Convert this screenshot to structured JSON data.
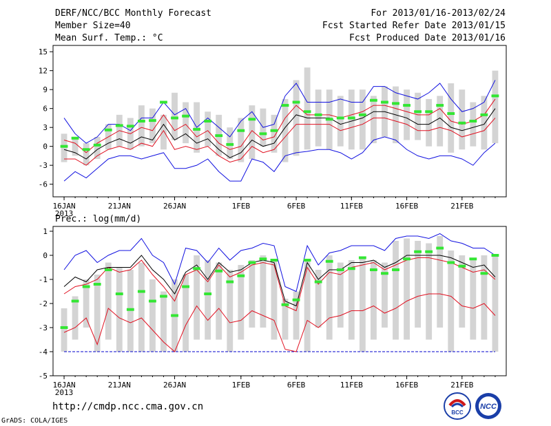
{
  "header": {
    "title": "DERF/NCC/BCC Monthly Forecast",
    "member_size": "Member Size=40",
    "variable": "Mean Surf. Temp.: °C",
    "period": "For 2013/01/16-2013/02/24",
    "start_date": "Fcst Started Refer Date 2013/01/15",
    "produced_date": "Fcst Produced Date 2013/01/16"
  },
  "footer": {
    "url": "http://cmdp.ncc.cma.gov.cn",
    "credit": "GrADS: COLA/IGES",
    "logo_bcc_text": "BCC",
    "logo_ncc_text": "NCC"
  },
  "colors": {
    "box": "#d4d4d4",
    "mean": "#33e633",
    "median": "#000000",
    "spread_inner": "#e01020",
    "spread_outer": "#1010e0",
    "floor": "#0000cc"
  },
  "chart_data": [
    {
      "type": "box-ensemble",
      "title": "Mean Surf. Temp.: °C",
      "x_days": 40,
      "ylim": [
        -8,
        16
      ],
      "yticks": [
        -6,
        -3,
        0,
        3,
        6,
        9,
        12,
        15
      ],
      "xticks": [
        {
          "day": 1,
          "label": "16JAN",
          "sub": "2013"
        },
        {
          "day": 6,
          "label": "21JAN"
        },
        {
          "day": 11,
          "label": "26JAN"
        },
        {
          "day": 17,
          "label": "1FEB"
        },
        {
          "day": 22,
          "label": "6FEB"
        },
        {
          "day": 27,
          "label": "11FEB"
        },
        {
          "day": 32,
          "label": "16FEB"
        },
        {
          "day": 37,
          "label": "21FEB"
        }
      ],
      "box_low": [
        -2.5,
        -1.5,
        -3,
        -2,
        -0.5,
        0,
        -0.5,
        0,
        0.5,
        -0.5,
        1,
        0.5,
        -1,
        0,
        -1.5,
        -2,
        -2.5,
        -2,
        0,
        -1,
        -2.5,
        -1.5,
        -0.5,
        0,
        -0.5,
        0,
        -0.5,
        -0.5,
        0.5,
        1.5,
        0.5,
        1,
        1,
        0,
        0,
        -1,
        -0.5,
        0,
        -0.5,
        0.5
      ],
      "box_high": [
        2,
        1.5,
        0.5,
        1.5,
        3.5,
        5,
        4.5,
        6.5,
        6,
        5,
        8.5,
        7,
        7,
        5.5,
        5,
        3,
        4.5,
        6.5,
        6,
        5,
        7.5,
        10.5,
        12.5,
        9,
        9,
        8,
        9,
        9,
        8,
        9.5,
        9.5,
        9,
        8.5,
        7.5,
        8,
        10,
        9,
        7,
        8,
        12
      ],
      "mean": [
        0,
        1.3,
        -0.5,
        0.2,
        2.6,
        3.3,
        3.2,
        4,
        4.1,
        7,
        4.5,
        4.8,
        2.7,
        4,
        1.7,
        0.3,
        2.5,
        4.3,
        2,
        2.5,
        6.5,
        7,
        5.5,
        5,
        4.3,
        4.5,
        4.5,
        5,
        7.3,
        7,
        6.8,
        6.5,
        5.5,
        5.5,
        6.5,
        5.2,
        3.7,
        4,
        5,
        8
      ],
      "median": [
        -0.5,
        -1,
        -2,
        -0.5,
        0.5,
        1.2,
        0.5,
        1.5,
        1,
        3.5,
        1,
        2,
        0.5,
        1.2,
        -0.5,
        -1.8,
        -1,
        1,
        0,
        0.5,
        3,
        5,
        4.5,
        4.5,
        4.5,
        3.5,
        4,
        4.5,
        5.5,
        5.5,
        5,
        4.5,
        3.5,
        3.5,
        4.5,
        3,
        2.5,
        3,
        3.5,
        6
      ],
      "inner_low": [
        -2,
        -2,
        -3,
        -1.5,
        -0.5,
        0,
        -0.5,
        0.5,
        0,
        2.5,
        -0.5,
        0,
        -0.5,
        0,
        -1.5,
        -2.5,
        -2,
        0,
        -1,
        -0.5,
        1.5,
        3.5,
        3.5,
        3.5,
        3.5,
        2.5,
        3,
        3.5,
        4.5,
        4.5,
        4,
        3.5,
        2.5,
        2.5,
        3,
        2.5,
        1.5,
        2,
        2.5,
        4.5
      ],
      "inner_high": [
        1,
        0.5,
        -1,
        0.5,
        1.5,
        2.5,
        2,
        3,
        2.5,
        5,
        2.5,
        3.5,
        1.5,
        2.5,
        0.5,
        -0.5,
        0,
        2.5,
        1,
        1.5,
        4.5,
        6.5,
        5,
        5,
        5,
        4.5,
        5,
        5.5,
        6.5,
        6.5,
        6,
        5.5,
        5,
        5,
        6,
        4,
        3.5,
        4,
        5,
        7.5
      ],
      "outer_low": [
        -5.5,
        -4,
        -5,
        -3.5,
        -2,
        -1.5,
        -1.5,
        -2,
        -1.5,
        -1,
        -3.5,
        -3.5,
        -3,
        -2,
        -4,
        -5.5,
        -5.5,
        -2,
        -2.5,
        -4,
        -1.5,
        -1,
        -0.8,
        -0.5,
        -0.5,
        -1,
        -2,
        -1,
        1,
        1.5,
        1,
        -0.5,
        -1.5,
        -2,
        -1.5,
        -1.5,
        -2,
        -3,
        -1,
        0.5
      ],
      "outer_high": [
        4.5,
        2,
        0.5,
        1.5,
        3.5,
        3.5,
        2.5,
        4.5,
        4.5,
        7,
        5,
        6,
        3,
        4.5,
        3,
        1.5,
        4,
        5.5,
        3,
        3.5,
        8,
        10,
        7,
        7,
        7,
        7.5,
        7,
        7,
        9.5,
        9.5,
        8.5,
        8,
        7.5,
        8.5,
        10,
        7.5,
        5.5,
        6,
        7,
        10.5
      ]
    },
    {
      "type": "box-ensemble",
      "title": "Prec.: log(mm/d)",
      "x_days": 40,
      "ylim": [
        -5,
        1.2
      ],
      "yticks": [
        -5,
        -4,
        -3,
        -2,
        -1,
        0,
        1
      ],
      "floor": -4,
      "xticks": [
        {
          "day": 1,
          "label": "16JAN",
          "sub": "2013"
        },
        {
          "day": 6,
          "label": "21JAN"
        },
        {
          "day": 11,
          "label": "26JAN"
        },
        {
          "day": 17,
          "label": "1FEB"
        },
        {
          "day": 22,
          "label": "6FEB"
        },
        {
          "day": 27,
          "label": "11FEB"
        },
        {
          "day": 32,
          "label": "16FEB"
        },
        {
          "day": 37,
          "label": "21FEB"
        }
      ],
      "box_low": [
        -4,
        -3.5,
        -3,
        -4,
        -3.5,
        -4,
        -4,
        -4,
        -4,
        -4,
        -4,
        -4,
        -3.5,
        -3.5,
        -3.5,
        -4,
        -3.5,
        -3,
        -3,
        -3.5,
        -3.5,
        -3.5,
        -4,
        -3,
        -3.5,
        -3,
        -3.5,
        -4,
        -3.5,
        -3,
        -3.5,
        -3.5,
        -3,
        -3.5,
        -3,
        -4,
        -3,
        -3.5,
        -3.5,
        -4
      ],
      "box_high": [
        -2.2,
        -1.7,
        -1,
        -0.8,
        -0.3,
        -0.5,
        -0.6,
        -0.3,
        -1,
        -1.5,
        -1,
        -0.8,
        0,
        -0.2,
        -0.3,
        -0.6,
        -0.4,
        -0.2,
        0,
        -0.2,
        -1.8,
        -1.5,
        -0.2,
        -0.6,
        0,
        -0.3,
        -0.2,
        -0.1,
        -0.2,
        -0.3,
        0.6,
        0.7,
        0.6,
        0.5,
        0.8,
        0.2,
        0,
        -0.1,
        0,
        0
      ]
    },
    {
      "type": "lines",
      "panel": 2,
      "mean": [
        -3,
        -1.9,
        -1.3,
        -1.2,
        -0.6,
        -1.6,
        -2.25,
        -1.5,
        -1.9,
        -1.7,
        -2.5,
        -1.3,
        -0.55,
        -1.6,
        -0.65,
        -1.1,
        -0.85,
        -0.3,
        -0.15,
        -0.2,
        -2.05,
        -1.85,
        -0.2,
        -1.1,
        -0.25,
        -0.6,
        -0.55,
        -0.1,
        -0.6,
        -0.75,
        -0.6,
        -0.15,
        0.15,
        0.15,
        0.3,
        -0.3,
        -0.45,
        -0.15,
        -0.75,
        0
      ],
      "median": [
        -1.3,
        -0.9,
        -1.1,
        -0.6,
        -0.5,
        -0.5,
        -0.5,
        0,
        -0.6,
        -1,
        -1.6,
        -0.7,
        -0.4,
        -1,
        -0.3,
        -0.7,
        -0.6,
        -0.3,
        -0.2,
        -0.3,
        -1.9,
        -2.1,
        -0.3,
        -1,
        -0.6,
        -0.6,
        -0.3,
        -0.3,
        -0.2,
        -0.5,
        -0.3,
        0,
        0,
        0,
        0,
        -0.1,
        -0.3,
        -0.5,
        -0.4,
        -0.9
      ],
      "inner_low": [
        -3.2,
        -3,
        -2.6,
        -3.7,
        -2.2,
        -2.6,
        -2.8,
        -2.6,
        -3.1,
        -3.6,
        -4,
        -2.9,
        -2.1,
        -2.7,
        -2.2,
        -2.8,
        -2.7,
        -2.3,
        -2.5,
        -2.7,
        -3.9,
        -4,
        -2.7,
        -3,
        -2.6,
        -2.5,
        -2.3,
        -2.3,
        -2.1,
        -2.4,
        -2.2,
        -1.9,
        -1.7,
        -1.6,
        -1.6,
        -1.7,
        -2.1,
        -2.2,
        -2.0,
        -2.5
      ],
      "inner_high": [
        -1.6,
        -1.3,
        -1.2,
        -1,
        -0.5,
        -0.7,
        -0.6,
        -0.2,
        -0.8,
        -1.3,
        -1.9,
        -0.8,
        -0.6,
        -1.1,
        -0.4,
        -0.9,
        -0.7,
        -0.4,
        -0.3,
        -0.4,
        -2.1,
        -2.3,
        -0.5,
        -1.2,
        -0.7,
        -0.8,
        -0.5,
        -0.4,
        -0.3,
        -0.6,
        -0.4,
        -0.2,
        -0.1,
        -0.1,
        -0.2,
        -0.3,
        -0.5,
        -0.7,
        -0.6,
        -1.0
      ],
      "outer_high": [
        -0.6,
        0,
        0.2,
        -0.3,
        0,
        0.2,
        0.2,
        0.7,
        0,
        -0.3,
        -1.2,
        0.3,
        0.2,
        -0.3,
        0.3,
        -0.2,
        0.2,
        0.3,
        0.5,
        0.4,
        -1.3,
        -1.5,
        0.4,
        -0.4,
        0.1,
        0.2,
        0.4,
        0.4,
        0.4,
        0.2,
        0.7,
        0.8,
        0.8,
        0.7,
        0.9,
        0.6,
        0.5,
        0.3,
        0.3,
        0
      ]
    }
  ]
}
